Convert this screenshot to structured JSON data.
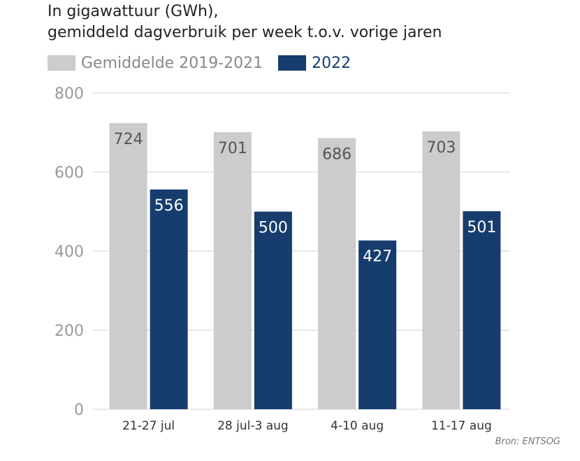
{
  "chart_data": {
    "type": "bar",
    "title_lines": [
      "In gigawattuur (GWh),",
      "gemiddeld dagverbruik per week t.o.v. vorige jaren"
    ],
    "categories": [
      "21-27 jul",
      "28 jul-3 aug",
      "4-10 aug",
      "11-17 aug"
    ],
    "series": [
      {
        "name": "Gemiddelde 2019-2021",
        "color": "#cccccc",
        "label_color": "#555555",
        "values": [
          724,
          701,
          686,
          703
        ]
      },
      {
        "name": "2022",
        "color": "#163d6e",
        "label_color": "#ffffff",
        "values": [
          556,
          500,
          427,
          501
        ]
      }
    ],
    "ylim": [
      0,
      800
    ],
    "yticks": [
      "0",
      "200",
      "400",
      "600",
      "800"
    ],
    "grid": true,
    "legend_position": "top-left",
    "source": "Bron: ENTSOG"
  }
}
